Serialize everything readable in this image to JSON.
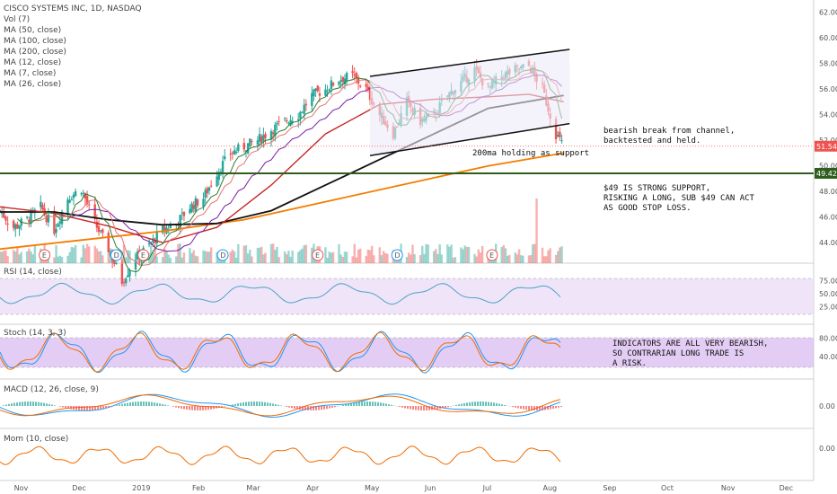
{
  "header": {
    "symbol_line": "CISCO SYSTEMS INC, 1D, NASDAQ",
    "indicators": [
      "Vol (7)",
      "MA (50, close)",
      "MA (100, close)",
      "MA (200, close)",
      "MA (12, close)",
      "MA (7, close)",
      "MA (26, close)"
    ]
  },
  "annotations": {
    "channel": "bearish break from channel,\nbacktested and held.",
    "ma200": "200ma holding as support",
    "support": "$49 IS STRONG SUPPORT,\nRISKING A LONG, SUB $49 CAN ACT\nAS GOOD STOP LOSS.",
    "indicators": "INDICATORS ARE ALL VERY BEARISH,\nSO CONTRARIAN LONG TRADE IS\nA RISK."
  },
  "panes": {
    "rsi": "RSI (14, close)",
    "stoch": "Stoch (14, 3, 3)",
    "macd": "MACD (12, 26, close, 9)",
    "mom": "Mom (10, close)"
  },
  "colors": {
    "up": "#26a69a",
    "down": "#ef5350",
    "ma50": "#c62828",
    "ma100": "#6a1b9a",
    "ma200": "#f57c00",
    "ma12": "#7b1fa2",
    "ma7": "#2e7d32",
    "ma26": "#111111",
    "support": "#2e5e1e",
    "rsi": "#4aa3c8",
    "band": "#e9d8f7"
  },
  "events": [
    "E",
    "D",
    "E",
    "D",
    "E",
    "D",
    "E"
  ],
  "chart_data": {
    "type": "candlestick",
    "title": "CISCO SYSTEMS INC, 1D, NASDAQ",
    "x_ticks": [
      "Nov",
      "Dec",
      "2019",
      "Feb",
      "Mar",
      "Apr",
      "May",
      "Jun",
      "Jul",
      "Aug",
      "Sep",
      "Oct",
      "Nov",
      "Dec"
    ],
    "price_ticks": [
      44,
      46,
      48,
      50,
      52,
      54,
      56,
      58,
      60,
      62
    ],
    "price_ylim": [
      42.4,
      62.4
    ],
    "last_price": "51.54",
    "support_level": "49.42",
    "rsi_ticks": [
      25,
      50,
      75
    ],
    "stoch_ticks": [
      40,
      80
    ],
    "macd_tick": "0.00",
    "mom_tick": "0.00",
    "price_path": [
      [
        "2018-10-22",
        46.5
      ],
      [
        "2018-10-29",
        45.2
      ],
      [
        "2018-11-05",
        45.8
      ],
      [
        "2018-11-12",
        46.8
      ],
      [
        "2018-11-19",
        45.0
      ],
      [
        "2018-11-26",
        47.5
      ],
      [
        "2018-12-03",
        48.2
      ],
      [
        "2018-12-10",
        45.5
      ],
      [
        "2018-12-17",
        43.5
      ],
      [
        "2018-12-24",
        41.0
      ],
      [
        "2018-12-31",
        42.8
      ],
      [
        "2019-01-07",
        43.8
      ],
      [
        "2019-01-14",
        45.0
      ],
      [
        "2019-01-21",
        45.5
      ],
      [
        "2019-01-28",
        46.8
      ],
      [
        "2019-02-04",
        47.5
      ],
      [
        "2019-02-11",
        49.5
      ],
      [
        "2019-02-18",
        51.0
      ],
      [
        "2019-02-25",
        51.5
      ],
      [
        "2019-03-04",
        52.0
      ],
      [
        "2019-03-11",
        52.8
      ],
      [
        "2019-03-18",
        53.5
      ],
      [
        "2019-03-25",
        54.0
      ],
      [
        "2019-04-01",
        55.5
      ],
      [
        "2019-04-08",
        56.0
      ],
      [
        "2019-04-15",
        56.8
      ],
      [
        "2019-04-22",
        57.0
      ],
      [
        "2019-04-29",
        56.0
      ],
      [
        "2019-05-06",
        54.0
      ],
      [
        "2019-05-13",
        52.5
      ],
      [
        "2019-05-20",
        55.0
      ],
      [
        "2019-05-27",
        53.5
      ],
      [
        "2019-06-03",
        54.0
      ],
      [
        "2019-06-10",
        55.5
      ],
      [
        "2019-06-17",
        56.5
      ],
      [
        "2019-06-24",
        57.5
      ],
      [
        "2019-07-01",
        56.0
      ],
      [
        "2019-07-08",
        57.0
      ],
      [
        "2019-07-15",
        57.5
      ],
      [
        "2019-07-22",
        57.8
      ],
      [
        "2019-07-29",
        56.0
      ],
      [
        "2019-08-05",
        52.5
      ],
      [
        "2019-08-09",
        51.5
      ]
    ],
    "ma200_path": [
      [
        "2018-10-22",
        43.5
      ],
      [
        "2018-12-03",
        44.2
      ],
      [
        "2019-01-14",
        44.9
      ],
      [
        "2019-02-25",
        45.8
      ],
      [
        "2019-04-08",
        47.2
      ],
      [
        "2019-05-20",
        48.6
      ],
      [
        "2019-07-01",
        50.0
      ],
      [
        "2019-08-09",
        51.0
      ]
    ],
    "ma100_path": [
      [
        "2018-10-22",
        46.4
      ],
      [
        "2018-11-19",
        46.4
      ],
      [
        "2018-12-17",
        45.8
      ],
      [
        "2019-01-14",
        45.4
      ],
      [
        "2019-02-11",
        45.5
      ],
      [
        "2019-03-11",
        46.5
      ],
      [
        "2019-04-08",
        48.5
      ],
      [
        "2019-05-06",
        50.5
      ],
      [
        "2019-06-03",
        52.5
      ],
      [
        "2019-07-01",
        54.5
      ],
      [
        "2019-08-09",
        55.5
      ]
    ],
    "ma50_path": [
      [
        "2018-10-22",
        46.8
      ],
      [
        "2018-11-19",
        46.3
      ],
      [
        "2018-12-17",
        45.3
      ],
      [
        "2019-01-14",
        44.0
      ],
      [
        "2019-02-11",
        45.2
      ],
      [
        "2019-03-11",
        48.5
      ],
      [
        "2019-04-08",
        52.5
      ],
      [
        "2019-05-06",
        54.8
      ],
      [
        "2019-06-03",
        55.2
      ],
      [
        "2019-07-01",
        55.4
      ],
      [
        "2019-07-22",
        55.6
      ],
      [
        "2019-08-09",
        55.0
      ]
    ],
    "channel": {
      "upper": [
        [
          "2019-05-01",
          57.0
        ],
        [
          "2019-08-12",
          59.1
        ]
      ],
      "lower": [
        [
          "2019-05-01",
          50.8
        ],
        [
          "2019-08-12",
          53.3
        ]
      ]
    },
    "volume_spike_date": "2019-07-26"
  }
}
